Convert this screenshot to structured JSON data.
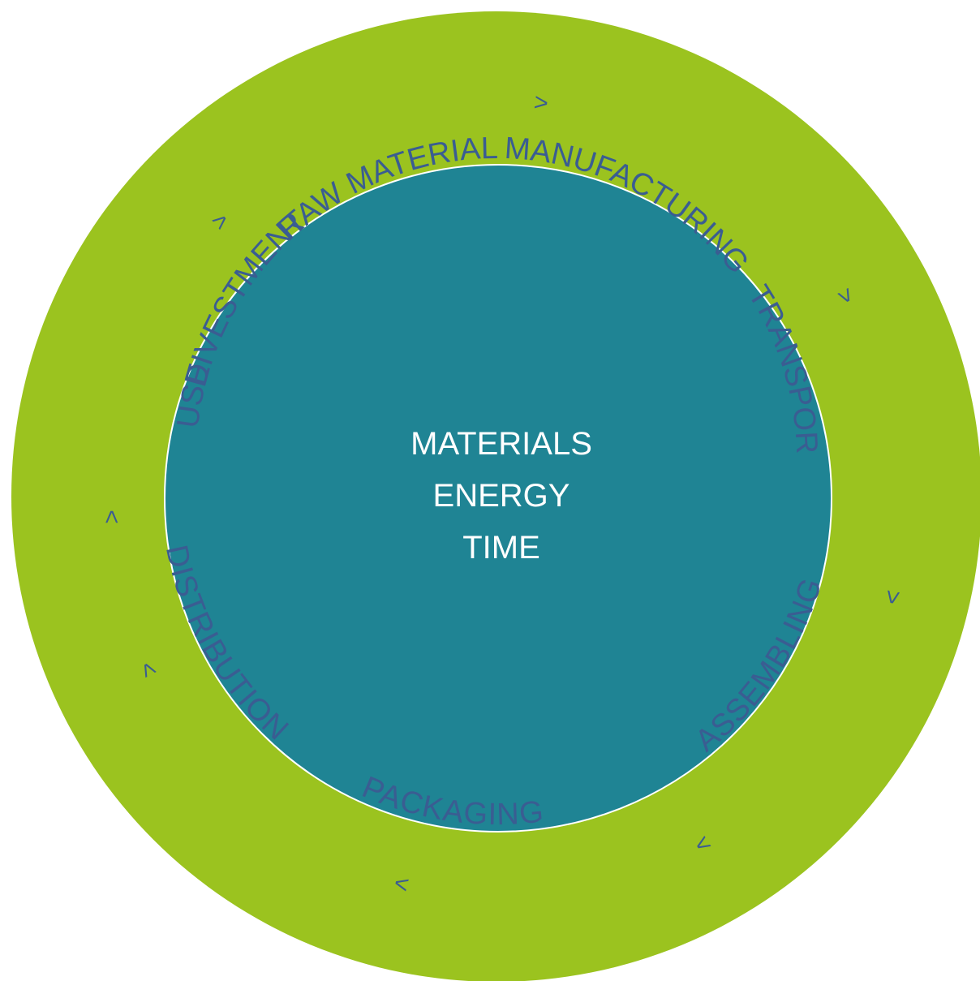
{
  "colors": {
    "outer_ring": "#9bc31f",
    "inner_circle": "#1f8494",
    "inner_circle_border": "#ffffff",
    "ring_text": "#3a5d92",
    "center_text": "#ffffff"
  },
  "cycle": {
    "stages": [
      {
        "label": "RAW MATERIAL"
      },
      {
        "label": "MANUFACTURING"
      },
      {
        "label": "TRANSPORT"
      },
      {
        "label": "ASSEMBLING"
      },
      {
        "label": "PACKAGING"
      },
      {
        "label": "DISTRIBUTION"
      },
      {
        "label": "USE"
      },
      {
        "label": "DIVESTMENT"
      }
    ],
    "separator": ">"
  },
  "center": {
    "lines": [
      "MATERIALS",
      "ENERGY",
      "TIME"
    ]
  }
}
